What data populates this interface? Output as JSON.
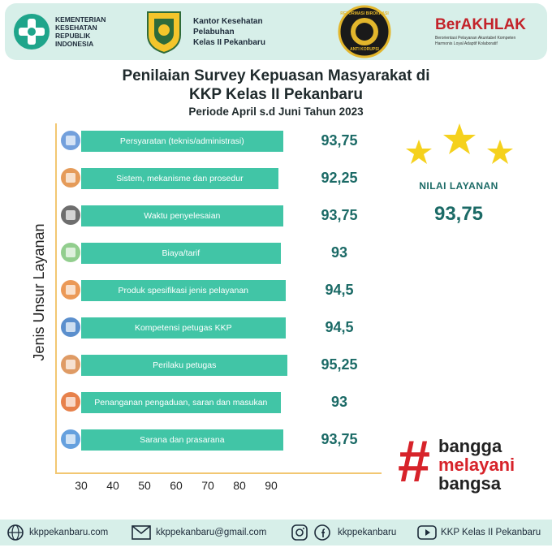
{
  "header": {
    "kemenkes_text": "KEMENTERIAN\nKESEHATAN\nREPUBLIK\nINDONESIA",
    "kantor_text": "Kantor Kesehatan\nPelabuhan\nKelas II Pekanbaru",
    "reformasi_text": "REFORMASI BIROKRASI",
    "anti_korupsi_text": "ANTI KORUPSI",
    "berakhlak_title": "BerAKHLAK",
    "berakhlak_sub": "Berorientasi Pelayanan Akuntabel Kompeten\nHarmonis Loyal Adaptif Kolaboratif"
  },
  "chart_data": {
    "type": "bar",
    "orientation": "horizontal",
    "title": "Penilaian Survey Kepuasan Masyarakat di",
    "title_line2": "KKP Kelas II Pekanbaru",
    "subtitle": "Periode April s.d Juni Tahun 2023",
    "ylabel": "Jenis Unsur Layanan",
    "xlabel": "",
    "xticks": [
      "30",
      "40",
      "50",
      "60",
      "70",
      "80",
      "90"
    ],
    "xlim": [
      25,
      90
    ],
    "categories": [
      "Persyaratan (teknis/administrasi)",
      "Sistem, mekanisme dan prosedur",
      "Waktu penyelesaian",
      "Biaya/tarif",
      "Produk spesifikasi jenis pelayanan",
      "Kompetensi petugas KKP",
      "Perilaku petugas",
      "Penanganan pengaduan, saran dan masukan",
      "Sarana dan prasarana"
    ],
    "values": [
      93.75,
      92.25,
      93.75,
      93,
      94.5,
      94.5,
      95.25,
      93,
      93.75
    ],
    "value_labels": [
      "93,75",
      "92,25",
      "93,75",
      "93",
      "94,5",
      "94,5",
      "95,25",
      "93",
      "93,75"
    ],
    "bar_color": "#41c5a6",
    "value_color": "#1b6a66",
    "axis_color": "#f2c772"
  },
  "icons": [
    "documents-icon",
    "process-flow-icon",
    "clock-icon",
    "money-hand-icon",
    "product-box-icon",
    "officer-icon",
    "people-icon",
    "call-center-icon",
    "building-icon"
  ],
  "summary": {
    "label": "NILAI LAYANAN",
    "value": "93,75",
    "star_color": "#f5d11d"
  },
  "slogan": {
    "hash": "#",
    "line1": "bangga",
    "line2": "melayani",
    "line3": "bangsa",
    "red": "#d7232a"
  },
  "footer": {
    "website": "kkppekanbaru.com",
    "email": "kkppekanbaru@gmail.com",
    "social": "kkppekanbaru",
    "youtube": "KKP Kelas II Pekanbaru"
  }
}
